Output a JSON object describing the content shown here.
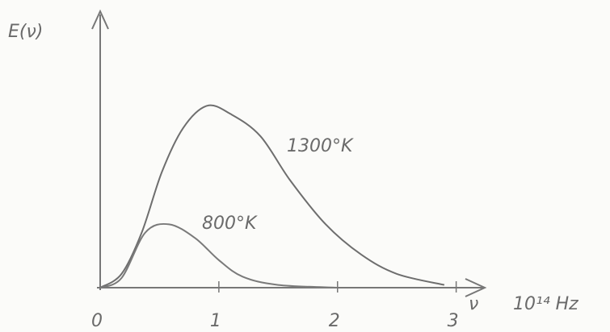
{
  "chart_data": {
    "type": "line",
    "y_label": "E(ν)",
    "x_label": "ν",
    "x_unit": "10¹⁴ Hz",
    "xlim": [
      0,
      3.2
    ],
    "ylim": [
      0,
      10
    ],
    "xticks": [
      0,
      1,
      2,
      3
    ],
    "series": [
      {
        "name": "1300°K",
        "color": "#6e6e6e",
        "x": [
          0,
          0.18,
          0.35,
          0.52,
          0.7,
          0.9,
          1.1,
          1.35,
          1.6,
          1.9,
          2.2,
          2.5,
          2.9
        ],
        "values": [
          0,
          0.5,
          2.0,
          4.2,
          5.8,
          6.6,
          6.3,
          5.5,
          3.9,
          2.3,
          1.2,
          0.5,
          0.1
        ]
      },
      {
        "name": "800°K",
        "color": "#7a7a7a",
        "x": [
          0,
          0.18,
          0.38,
          0.58,
          0.8,
          1.0,
          1.2,
          1.5,
          2.0
        ],
        "values": [
          0,
          0.35,
          2.0,
          2.3,
          1.8,
          1.0,
          0.4,
          0.1,
          0
        ]
      }
    ]
  }
}
